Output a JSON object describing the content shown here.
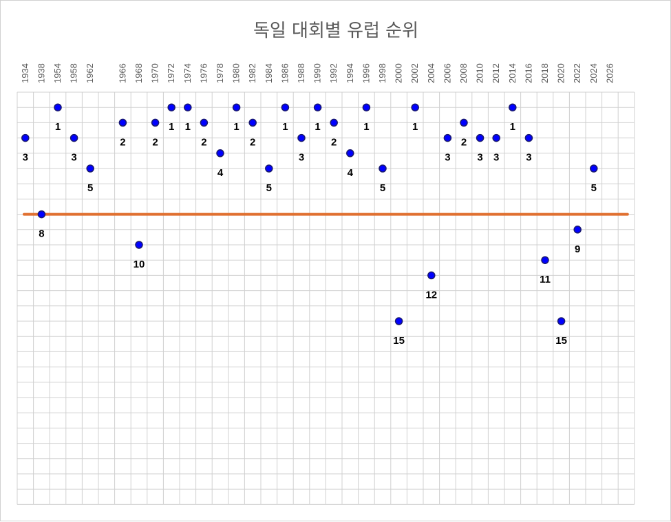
{
  "chart_data": {
    "type": "scatter",
    "title": "독일 대회별 유럽 순위",
    "xlabel": "",
    "ylabel": "",
    "x_tick_labels": [
      "1934",
      "1938",
      "1954",
      "1958",
      "1962",
      "1966",
      "1968",
      "1970",
      "1972",
      "1974",
      "1976",
      "1978",
      "1980",
      "1982",
      "1984",
      "1986",
      "1988",
      "1990",
      "1992",
      "1994",
      "1996",
      "1998",
      "2000",
      "2002",
      "2004",
      "2006",
      "2008",
      "2010",
      "2012",
      "2014",
      "2016",
      "2018",
      "2020",
      "2022",
      "2024",
      "2026"
    ],
    "y_inverted": true,
    "ylim": [
      -1,
      25
    ],
    "grid": true,
    "legend": "none",
    "points": [
      {
        "x": "1934",
        "y": 3
      },
      {
        "x": "1938",
        "y": 8
      },
      {
        "x": "1954",
        "y": 1
      },
      {
        "x": "1958",
        "y": 3
      },
      {
        "x": "1962",
        "y": 5
      },
      {
        "x": "1966",
        "y": 2
      },
      {
        "x": "1968",
        "y": 10
      },
      {
        "x": "1970",
        "y": 2
      },
      {
        "x": "1972",
        "y": 1
      },
      {
        "x": "1974",
        "y": 1
      },
      {
        "x": "1976",
        "y": 2
      },
      {
        "x": "1978",
        "y": 4
      },
      {
        "x": "1980",
        "y": 1
      },
      {
        "x": "1982",
        "y": 2
      },
      {
        "x": "1984",
        "y": 5
      },
      {
        "x": "1986",
        "y": 1
      },
      {
        "x": "1988",
        "y": 3
      },
      {
        "x": "1990",
        "y": 1
      },
      {
        "x": "1992",
        "y": 2
      },
      {
        "x": "1994",
        "y": 4
      },
      {
        "x": "1996",
        "y": 1
      },
      {
        "x": "1998",
        "y": 5
      },
      {
        "x": "2000",
        "y": 15
      },
      {
        "x": "2002",
        "y": 1
      },
      {
        "x": "2004",
        "y": 12
      },
      {
        "x": "2006",
        "y": 3
      },
      {
        "x": "2008",
        "y": 2
      },
      {
        "x": "2010",
        "y": 3
      },
      {
        "x": "2012",
        "y": 3
      },
      {
        "x": "2014",
        "y": 1
      },
      {
        "x": "2016",
        "y": 3
      },
      {
        "x": "2018",
        "y": 11
      },
      {
        "x": "2020",
        "y": 15
      },
      {
        "x": "2022",
        "y": 9
      },
      {
        "x": "2024",
        "y": 5
      }
    ],
    "reference_line": {
      "y": 8
    },
    "colors": {
      "marker_fill": "#0000ff",
      "marker_stroke": "#1a1a6e",
      "reference_line": "#e07030",
      "grid": "#d0d0d0",
      "text": "#595959",
      "data_label": "#000000"
    }
  }
}
